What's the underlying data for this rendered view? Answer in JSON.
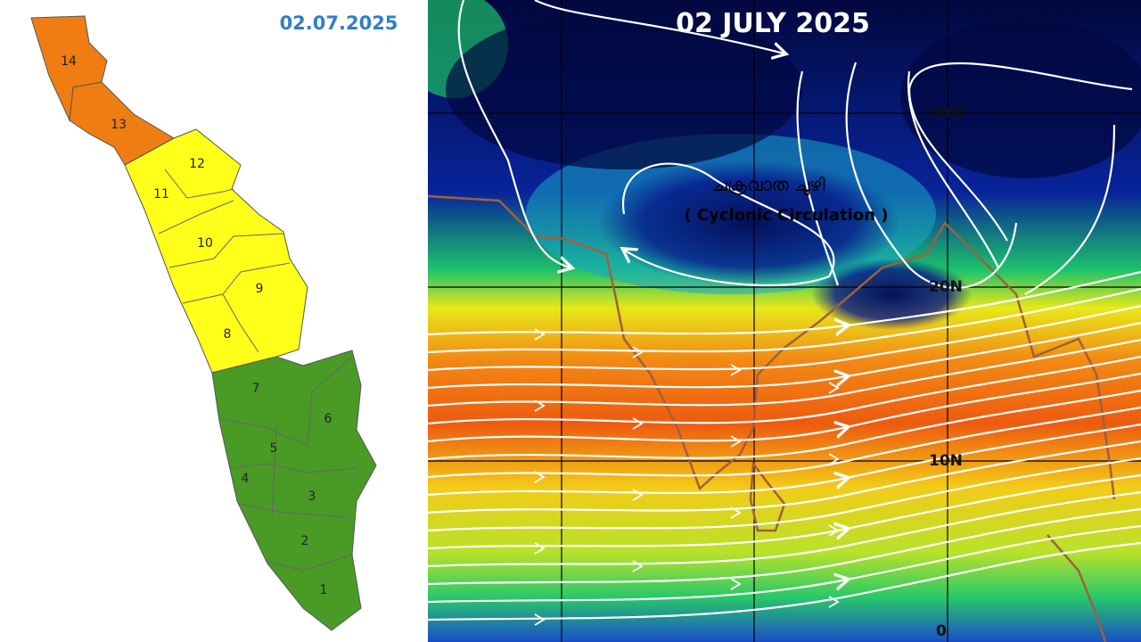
{
  "header": {
    "date": "02.07.2025"
  },
  "districts": [
    "1",
    "2",
    "3",
    "4",
    "5",
    "6",
    "7",
    "8",
    "9",
    "10",
    "11",
    "12",
    "13",
    "14"
  ],
  "wind_map": {
    "title": "02 JULY 2025",
    "label_ml": "ചക്രവാത ചുഴി",
    "label_en": "( Cyclonic Circulation )",
    "latitudes": [
      "30N",
      "20N",
      "10N",
      "0"
    ]
  }
}
